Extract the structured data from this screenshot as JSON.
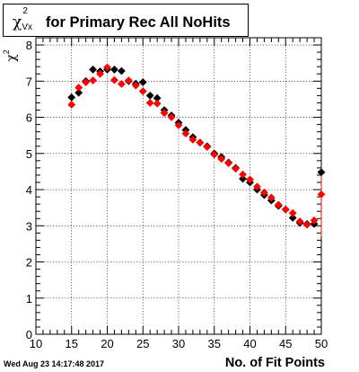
{
  "title": {
    "symbol": "χ",
    "superscript": "2",
    "subscript": "Vx",
    "text": "for Primary Rec All NoHits"
  },
  "y_axis_label": {
    "symbol": "χ",
    "superscript": "2"
  },
  "footer_date": "Wed Aug 23 14:17:48 2017",
  "chart_data": {
    "type": "scatter",
    "title": "χ²_Vx for Primary Rec All NoHits",
    "xlabel": "No. of Fit Points",
    "ylabel": "χ²",
    "xlim": [
      10,
      50
    ],
    "ylim": [
      0,
      8.2
    ],
    "x_ticks": [
      10,
      15,
      20,
      25,
      30,
      35,
      40,
      45,
      50
    ],
    "y_ticks": [
      0,
      1,
      2,
      3,
      4,
      5,
      6,
      7,
      8
    ],
    "grid": true,
    "series": [
      {
        "color": "#000000",
        "marker": "diamond",
        "points": [
          {
            "x": 15,
            "y": 6.55
          },
          {
            "x": 16,
            "y": 6.68
          },
          {
            "x": 17,
            "y": 7.0
          },
          {
            "x": 18,
            "y": 7.32
          },
          {
            "x": 19,
            "y": 7.27
          },
          {
            "x": 20,
            "y": 7.32
          },
          {
            "x": 21,
            "y": 7.32
          },
          {
            "x": 22,
            "y": 7.28
          },
          {
            "x": 23,
            "y": 7.0
          },
          {
            "x": 24,
            "y": 6.93
          },
          {
            "x": 25,
            "y": 6.97
          },
          {
            "x": 26,
            "y": 6.6
          },
          {
            "x": 27,
            "y": 6.53
          },
          {
            "x": 28,
            "y": 6.2
          },
          {
            "x": 29,
            "y": 6.05
          },
          {
            "x": 30,
            "y": 5.85
          },
          {
            "x": 31,
            "y": 5.65
          },
          {
            "x": 32,
            "y": 5.45
          },
          {
            "x": 33,
            "y": 5.3
          },
          {
            "x": 34,
            "y": 5.2
          },
          {
            "x": 35,
            "y": 5.0
          },
          {
            "x": 36,
            "y": 4.9
          },
          {
            "x": 37,
            "y": 4.75
          },
          {
            "x": 38,
            "y": 4.6
          },
          {
            "x": 39,
            "y": 4.3
          },
          {
            "x": 40,
            "y": 4.2
          },
          {
            "x": 41,
            "y": 4.0
          },
          {
            "x": 42,
            "y": 3.85
          },
          {
            "x": 43,
            "y": 3.7
          },
          {
            "x": 44,
            "y": 3.55
          },
          {
            "x": 45,
            "y": 3.45
          },
          {
            "x": 46,
            "y": 3.22
          },
          {
            "x": 47,
            "y": 3.08
          },
          {
            "x": 48,
            "y": 3.05
          },
          {
            "x": 49,
            "y": 3.05
          },
          {
            "x": 50,
            "y": 4.48
          }
        ]
      },
      {
        "color": "#ff0000",
        "marker": "diamond",
        "points": [
          {
            "x": 15,
            "y": 6.35
          },
          {
            "x": 16,
            "y": 6.82
          },
          {
            "x": 17,
            "y": 6.97
          },
          {
            "x": 18,
            "y": 7.02
          },
          {
            "x": 19,
            "y": 7.2
          },
          {
            "x": 20,
            "y": 7.38
          },
          {
            "x": 21,
            "y": 7.03
          },
          {
            "x": 22,
            "y": 6.92
          },
          {
            "x": 23,
            "y": 7.02
          },
          {
            "x": 24,
            "y": 6.88
          },
          {
            "x": 25,
            "y": 6.72
          },
          {
            "x": 26,
            "y": 6.4
          },
          {
            "x": 27,
            "y": 6.38
          },
          {
            "x": 28,
            "y": 6.12
          },
          {
            "x": 29,
            "y": 6.0
          },
          {
            "x": 30,
            "y": 5.78
          },
          {
            "x": 31,
            "y": 5.55
          },
          {
            "x": 32,
            "y": 5.38
          },
          {
            "x": 33,
            "y": 5.3
          },
          {
            "x": 34,
            "y": 5.18
          },
          {
            "x": 35,
            "y": 4.97
          },
          {
            "x": 36,
            "y": 4.85
          },
          {
            "x": 37,
            "y": 4.73
          },
          {
            "x": 38,
            "y": 4.58
          },
          {
            "x": 39,
            "y": 4.42
          },
          {
            "x": 40,
            "y": 4.28
          },
          {
            "x": 41,
            "y": 4.08
          },
          {
            "x": 42,
            "y": 3.92
          },
          {
            "x": 43,
            "y": 3.78
          },
          {
            "x": 44,
            "y": 3.58
          },
          {
            "x": 45,
            "y": 3.45
          },
          {
            "x": 46,
            "y": 3.35
          },
          {
            "x": 47,
            "y": 3.12
          },
          {
            "x": 48,
            "y": 3.03
          },
          {
            "x": 49,
            "y": 3.15
          },
          {
            "x": 50,
            "y": 3.87
          }
        ]
      }
    ]
  }
}
